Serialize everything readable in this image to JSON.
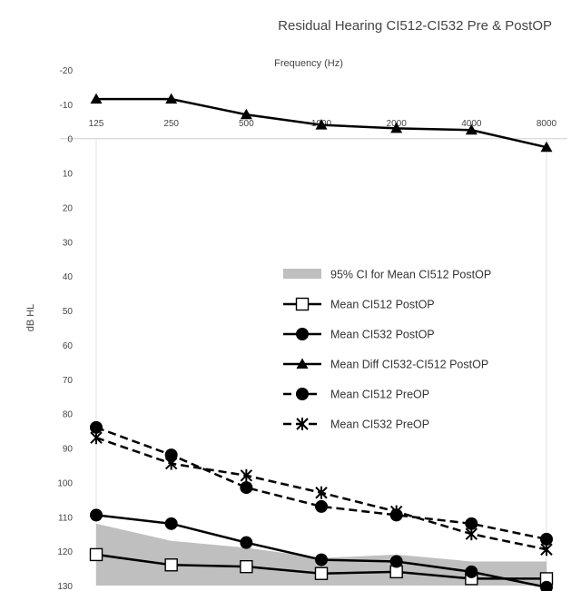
{
  "chart_data": {
    "type": "line",
    "title": "Residual Hearing CI512-CI532 Pre & PostOP",
    "xlabel": "Frequency (Hz)",
    "ylabel": "dB HL",
    "categories": [
      "125",
      "250",
      "500",
      "1000",
      "2000",
      "4000",
      "8000"
    ],
    "ylim": [
      -20,
      130
    ],
    "y_reversed": true,
    "yticks": [
      -20,
      -10,
      0,
      10,
      20,
      30,
      40,
      50,
      60,
      70,
      80,
      90,
      100,
      110,
      120,
      130
    ],
    "ci_band": {
      "name": "95% CI for Mean CI512 PostOP",
      "color": "#bfbfbf",
      "lower": [
        112,
        117,
        119,
        122,
        121,
        123,
        123
      ],
      "upper": [
        130,
        130,
        130,
        130,
        130,
        130,
        130
      ]
    },
    "series": [
      {
        "name": "Mean CI512 PostOP",
        "values": [
          121,
          124,
          124.5,
          126.5,
          126,
          128,
          128
        ],
        "marker": "square-open",
        "dash": false,
        "color": "#000000"
      },
      {
        "name": "Mean CI532 PostOP",
        "values": [
          109.5,
          112,
          117.5,
          122.5,
          123,
          126,
          130.5
        ],
        "marker": "circle",
        "dash": false,
        "color": "#000000"
      },
      {
        "name": "Mean Diff CI532-CI512 PostOP",
        "values": [
          -11.5,
          -11.5,
          -7,
          -4,
          -3,
          -2.5,
          2.5
        ],
        "marker": "triangle",
        "dash": false,
        "color": "#000000"
      },
      {
        "name": "Mean CI512 PreOP",
        "values": [
          84,
          92,
          101.5,
          107,
          109.5,
          112,
          116.5
        ],
        "marker": "circle",
        "dash": true,
        "color": "#000000"
      },
      {
        "name": "Mean CI532 PreOP",
        "values": [
          87,
          94.5,
          98,
          103,
          108.5,
          115,
          119.5
        ],
        "marker": "star",
        "dash": true,
        "color": "#000000"
      }
    ],
    "legend_position": "right-middle",
    "grid": false
  }
}
